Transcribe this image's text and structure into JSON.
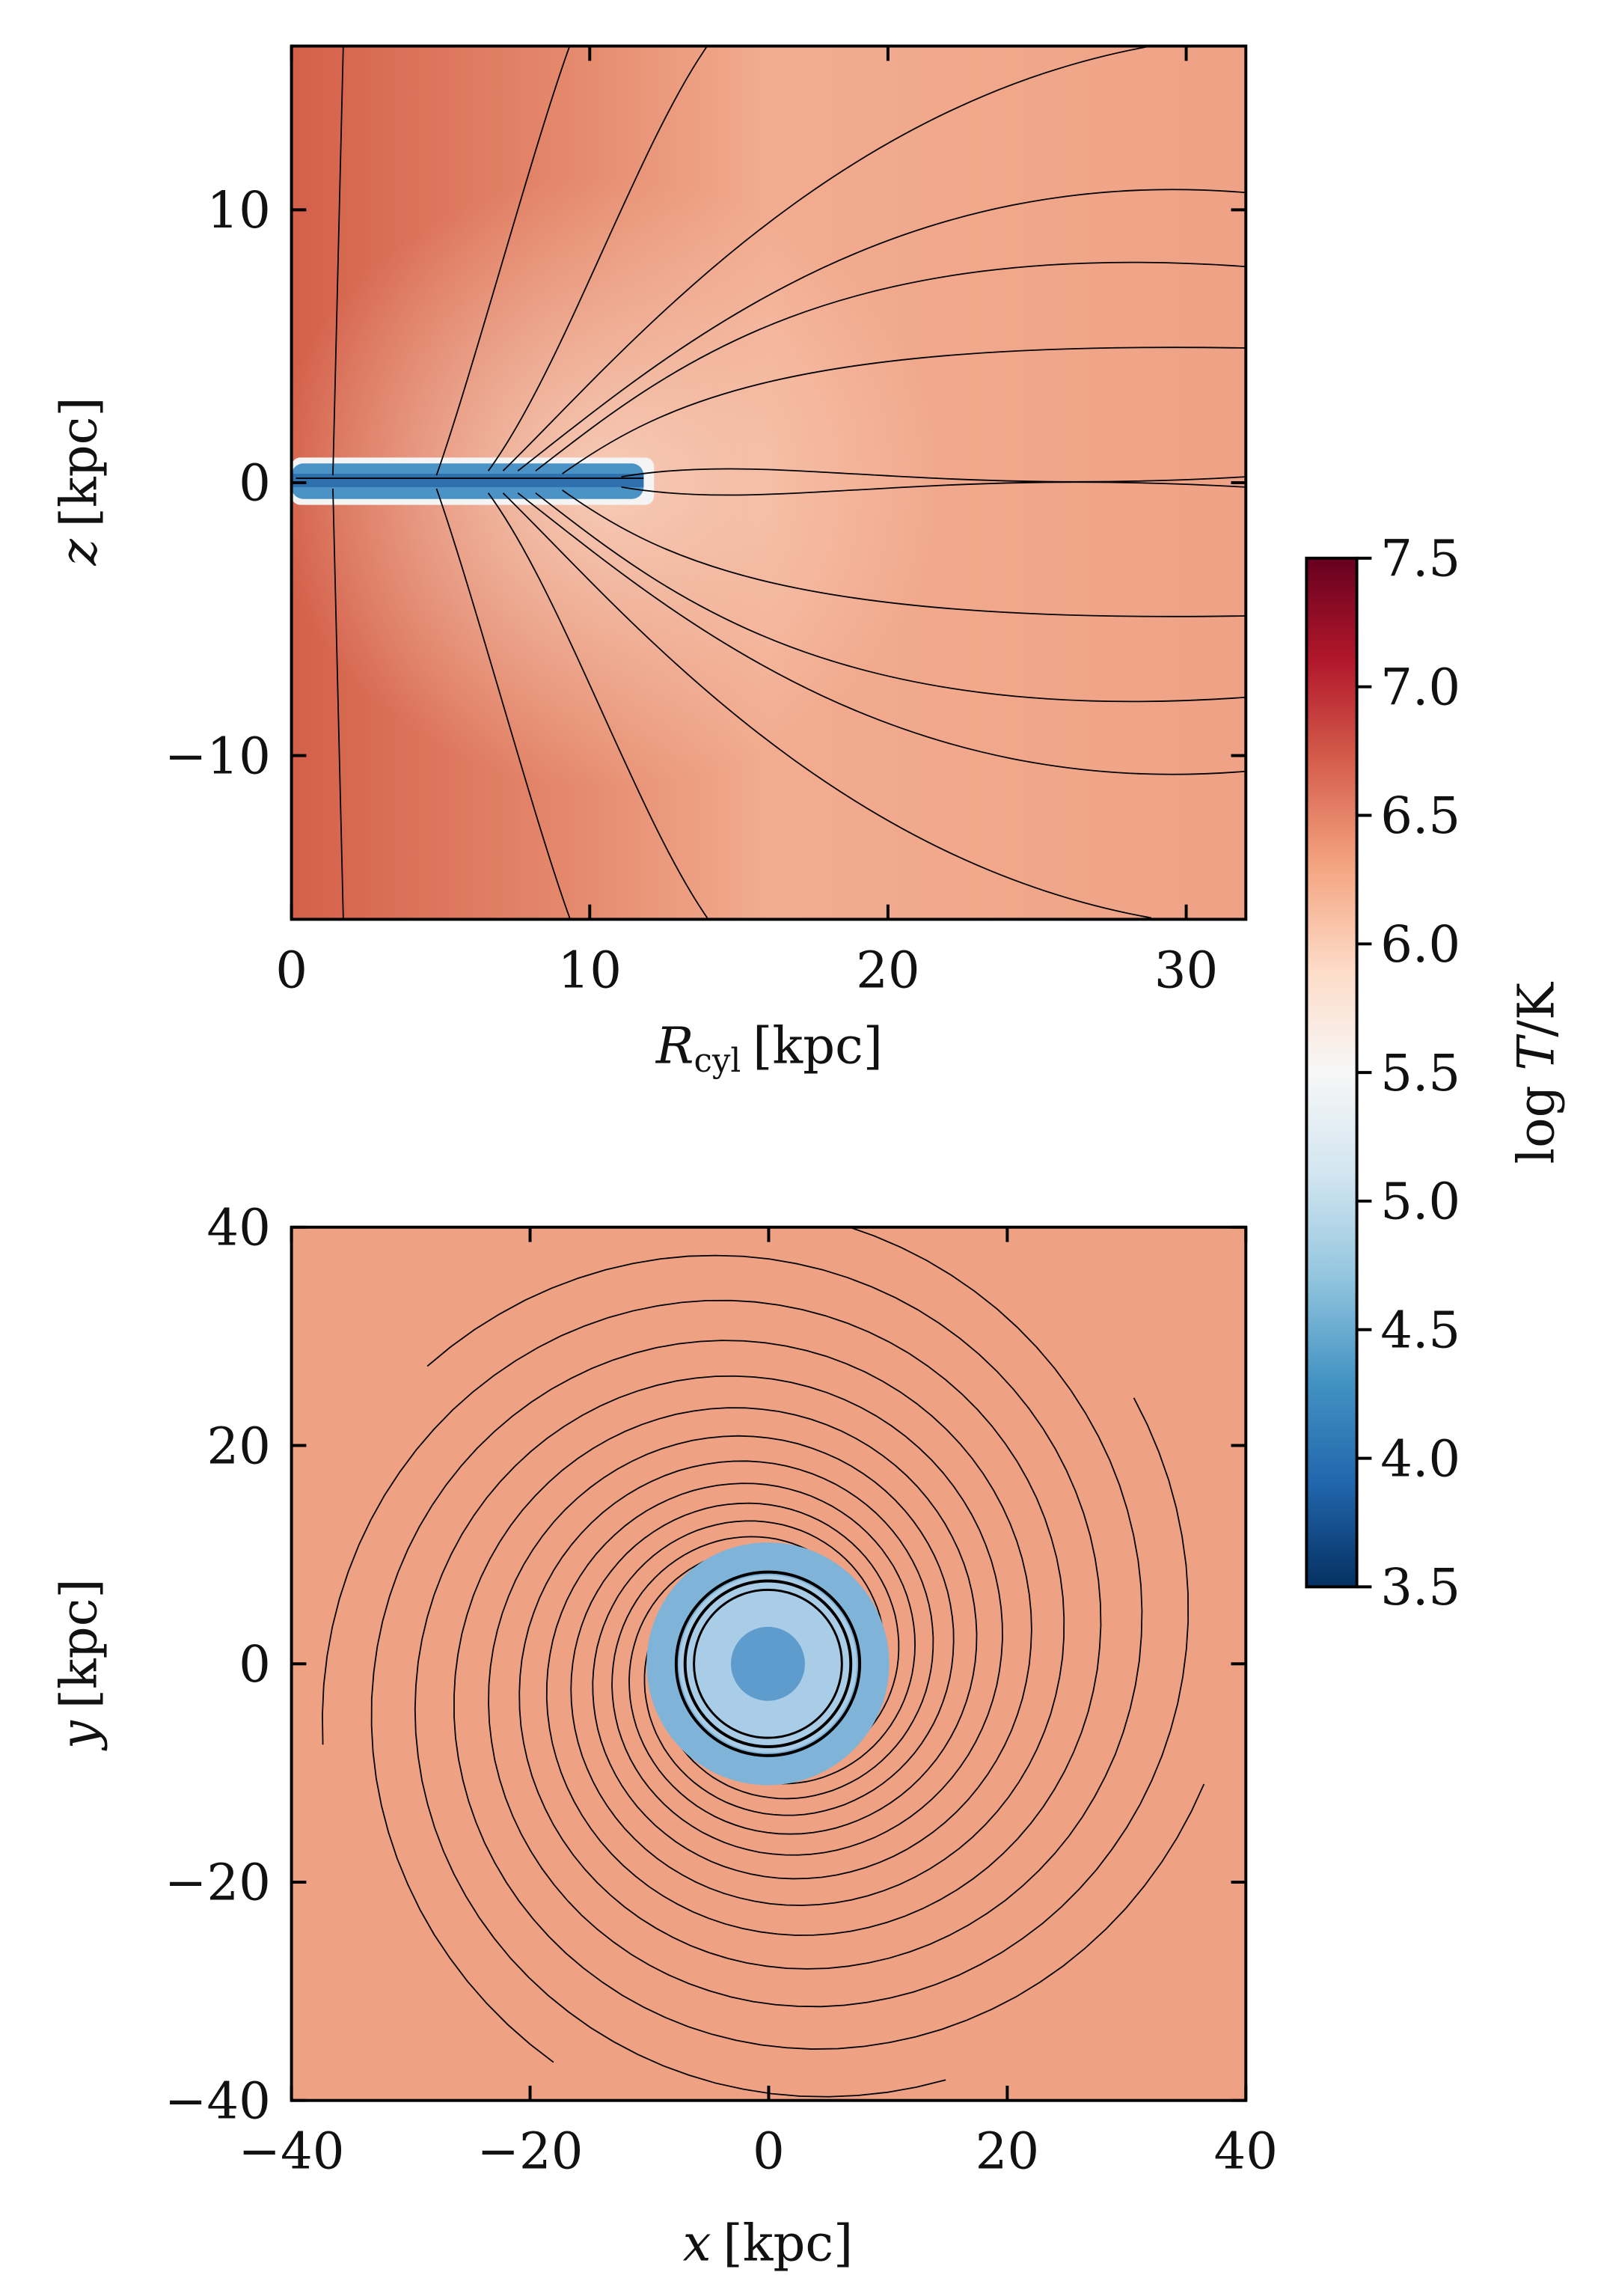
{
  "chart_data": [
    {
      "type": "heatmap",
      "xlabel": {
        "symbol": "R",
        "subscript": "cyl",
        "unit": "[kpc]"
      },
      "ylabel": {
        "symbol": "z",
        "unit": "[kpc]"
      },
      "xlim": [
        0,
        32
      ],
      "xticks": [
        0,
        10,
        20,
        30
      ],
      "ylim": [
        -16,
        16
      ],
      "yticks": [
        {
          "value": -10,
          "label": "−10"
        },
        0,
        10
      ],
      "colorbar": {
        "label": {
          "prefix": "log",
          "symbol": "T",
          "unit": "/K"
        },
        "lim": [
          3.5,
          7.5
        ],
        "ticks": [
          3.5,
          {
            "value": 4,
            "label": "4.0"
          },
          4.5,
          {
            "value": 5,
            "label": "5.0"
          },
          5.5,
          {
            "value": 6,
            "label": "6.0"
          },
          6.5,
          {
            "value": 7,
            "label": "7.0"
          },
          7.5
        ],
        "colors": [
          "#053061",
          "#2166ac",
          "#4393c3",
          "#92c5de",
          "#d1e5f0",
          "#f7f7f7",
          "#fddbc7",
          "#f4a582",
          "#d6604d",
          "#b2182b",
          "#67001f"
        ]
      }
    },
    {
      "type": "heatmap",
      "xlabel": {
        "symbol": "x",
        "unit": "[kpc]"
      },
      "ylabel": {
        "symbol": "y",
        "unit": "[kpc]"
      },
      "xlim": [
        -40,
        40
      ],
      "xticks": [
        {
          "value": -40,
          "label": "−40"
        },
        {
          "value": -20,
          "label": "−20"
        },
        0,
        20,
        40
      ],
      "ylim": [
        -40,
        40
      ],
      "yticks": [
        {
          "value": -40,
          "label": "−40"
        },
        {
          "value": -20,
          "label": "−20"
        },
        0,
        20,
        40
      ]
    }
  ]
}
